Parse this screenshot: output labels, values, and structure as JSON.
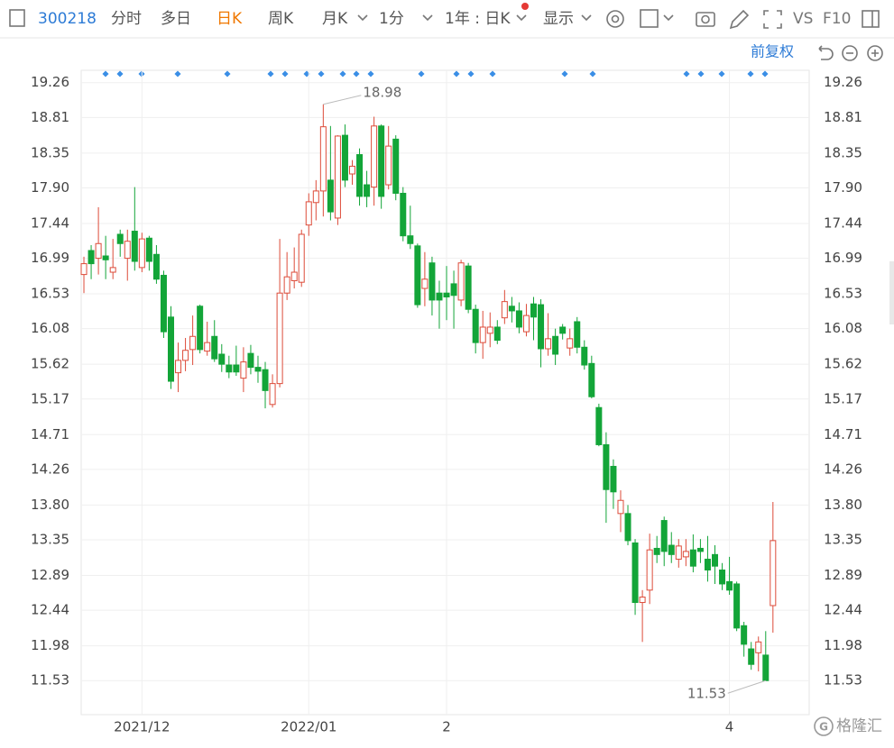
{
  "toolbar": {
    "code": "300218",
    "intraday": "分时",
    "multi_day": "多日",
    "daily": "日K",
    "weekly": "周K",
    "monthly": "月K",
    "minute": "1分",
    "range": "1年 : 日K",
    "display": "显示",
    "vs": "VS",
    "f10": "F10"
  },
  "adjust": "前复权",
  "watermark": "格隆汇",
  "chart_data": {
    "type": "candlestick",
    "categories": [
      null,
      null,
      null,
      null,
      null,
      null,
      null,
      null,
      "2021/12",
      null,
      null,
      null,
      null,
      null,
      null,
      null,
      null,
      null,
      null,
      null,
      null,
      null,
      null,
      null,
      null,
      null,
      null,
      null,
      null,
      null,
      null,
      "2022/01",
      null,
      null,
      null,
      null,
      null,
      null,
      null,
      null,
      null,
      null,
      null,
      null,
      null,
      null,
      null,
      null,
      null,
      null,
      "2",
      null,
      null,
      null,
      null,
      null,
      null,
      null,
      null,
      null,
      null,
      null,
      null,
      null,
      null,
      null,
      null,
      null,
      null,
      null,
      null,
      null,
      null,
      null,
      null,
      null,
      null,
      null,
      null,
      null,
      null,
      null,
      null,
      null,
      null,
      null,
      null,
      null,
      null,
      "4",
      null,
      null,
      null,
      null,
      null,
      null
    ],
    "open": [
      16.78,
      17.09,
      16.99,
      17.02,
      16.81,
      17.3,
      16.99,
      17.34,
      16.87,
      17.25,
      17.04,
      16.77,
      16.23,
      15.51,
      15.67,
      15.81,
      16.37,
      15.79,
      15.98,
      15.75,
      15.61,
      15.61,
      15.44,
      15.76,
      15.58,
      15.55,
      15.1,
      15.37,
      16.54,
      16.7,
      16.68,
      17.42,
      17.71,
      17.86,
      18.0,
      17.51,
      18.58,
      18.08,
      18.33,
      17.94,
      17.91,
      18.7,
      17.94,
      18.53,
      17.83,
      17.28,
      17.15,
      16.6,
      16.93,
      16.54,
      16.54,
      16.66,
      16.45,
      16.89,
      16.33,
      15.9,
      16.02,
      16.1,
      16.22,
      16.37,
      16.31,
      16.04,
      16.4,
      16.39,
      15.82,
      15.98,
      16.1,
      15.83,
      16.17,
      15.84,
      15.63,
      15.06,
      14.58,
      14.3,
      13.69,
      13.69,
      13.31,
      12.54,
      12.7,
      13.24,
      13.6,
      13.28,
      13.1,
      13.13,
      13.22,
      13.24,
      13.1,
      13.16,
      12.96,
      12.81,
      12.78,
      12.24,
      11.94,
      11.89,
      11.86,
      12.5
    ],
    "high": [
      17.01,
      17.16,
      17.65,
      17.28,
      17.24,
      17.36,
      17.36,
      17.91,
      17.32,
      17.28,
      17.16,
      16.83,
      16.37,
      15.9,
      15.96,
      16.25,
      16.39,
      16.17,
      16.19,
      15.88,
      15.73,
      15.86,
      15.84,
      15.87,
      15.73,
      15.65,
      15.49,
      17.24,
      17.07,
      17.13,
      17.36,
      17.83,
      18.0,
      18.98,
      18.7,
      18.58,
      18.72,
      18.26,
      18.41,
      18.12,
      18.82,
      18.72,
      18.7,
      18.58,
      17.91,
      17.67,
      17.18,
      17.07,
      17.01,
      16.7,
      16.89,
      16.83,
      16.97,
      16.93,
      16.39,
      16.31,
      16.29,
      16.19,
      16.58,
      16.49,
      16.42,
      16.4,
      16.49,
      16.46,
      16.28,
      16.08,
      16.14,
      16.08,
      16.23,
      15.93,
      15.73,
      15.11,
      14.74,
      14.39,
      13.99,
      13.8,
      13.36,
      12.7,
      13.43,
      13.4,
      13.65,
      13.45,
      13.36,
      13.36,
      13.42,
      13.36,
      13.4,
      13.28,
      13.05,
      13.13,
      12.81,
      12.29,
      12.03,
      12.1,
      12.17,
      13.84
    ],
    "low": [
      16.54,
      16.72,
      16.78,
      16.72,
      16.72,
      17.01,
      16.7,
      16.83,
      16.81,
      16.83,
      16.66,
      15.96,
      15.3,
      15.26,
      15.53,
      15.61,
      15.76,
      15.73,
      15.65,
      15.52,
      15.44,
      15.47,
      15.26,
      15.49,
      15.38,
      15.05,
      15.06,
      15.32,
      16.45,
      16.6,
      16.62,
      17.28,
      17.48,
      17.53,
      17.48,
      17.42,
      17.91,
      17.94,
      17.67,
      17.65,
      17.67,
      17.63,
      17.88,
      17.74,
      17.21,
      17.11,
      16.35,
      16.37,
      16.25,
      16.08,
      16.19,
      16.08,
      16.37,
      16.28,
      15.76,
      15.69,
      15.84,
      15.88,
      16.14,
      16.16,
      16.02,
      15.98,
      15.93,
      15.58,
      15.73,
      15.61,
      15.94,
      15.73,
      15.76,
      15.55,
      15.18,
      14.56,
      13.57,
      13.75,
      13.45,
      13.28,
      12.38,
      12.03,
      12.52,
      13.05,
      13.01,
      13.05,
      12.99,
      13.01,
      12.93,
      13.05,
      12.81,
      12.78,
      12.7,
      12.64,
      12.17,
      11.84,
      11.67,
      11.65,
      11.53,
      12.15
    ],
    "close": [
      16.92,
      16.92,
      17.18,
      16.97,
      16.87,
      17.18,
      17.21,
      16.95,
      17.24,
      16.95,
      16.72,
      16.04,
      15.4,
      15.67,
      15.8,
      15.98,
      15.81,
      15.9,
      15.69,
      15.62,
      15.52,
      15.52,
      15.65,
      15.58,
      15.53,
      15.28,
      15.37,
      16.54,
      16.75,
      16.81,
      17.3,
      17.72,
      17.86,
      18.69,
      17.59,
      18.57,
      18.0,
      18.18,
      17.79,
      17.79,
      18.7,
      17.79,
      18.44,
      17.83,
      17.28,
      17.18,
      16.39,
      16.72,
      16.45,
      16.45,
      16.49,
      16.51,
      16.93,
      16.33,
      15.9,
      16.1,
      16.1,
      15.93,
      16.43,
      16.31,
      16.1,
      16.25,
      16.23,
      15.82,
      15.95,
      15.75,
      16.02,
      15.95,
      15.84,
      15.61,
      15.2,
      14.58,
      14.0,
      13.97,
      13.86,
      13.34,
      12.54,
      12.61,
      13.22,
      13.16,
      13.2,
      13.16,
      13.27,
      13.2,
      13.01,
      13.2,
      12.96,
      13.01,
      12.78,
      12.7,
      12.21,
      12.0,
      11.74,
      12.03,
      11.53,
      13.34
    ],
    "up_color": "#dd4b39",
    "down_color": "#13a538",
    "high_mark": 18.98,
    "low_mark": 11.53,
    "ylim": [
      11.09,
      19.42
    ],
    "yticks": [
      19.26,
      18.81,
      18.35,
      {
        "value": 17.9,
        "label": "17.90"
      },
      17.44,
      16.99,
      16.53,
      16.08,
      15.62,
      15.17,
      14.71,
      14.26,
      {
        "value": 13.8,
        "label": "13.80"
      },
      13.35,
      12.89,
      12.44,
      11.98,
      11.53
    ],
    "grid": true
  }
}
